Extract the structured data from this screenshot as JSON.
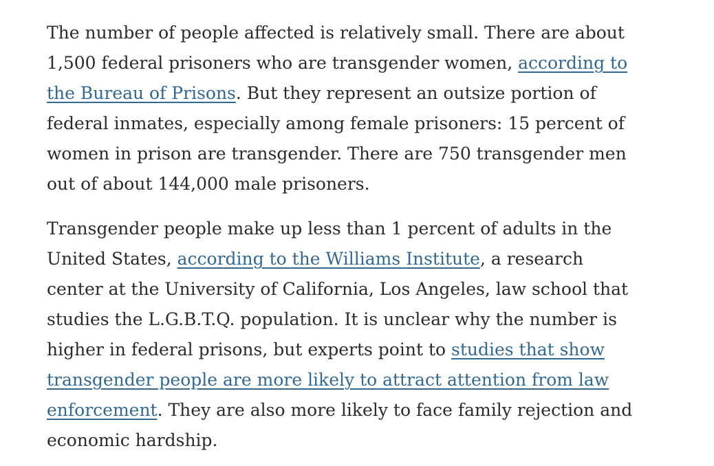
{
  "article": {
    "paragraph1": {
      "line1": "The number of people affected is relatively small. There are about",
      "line2_text": "1,500 federal prisoners who are transgender women, ",
      "link1_part1": "according to",
      "link1_part2": "the Bureau of Prisons",
      "line3_text": ". But they represent an outsize portion of",
      "line4": "federal inmates, especially among female prisoners: 15 percent of",
      "line5": "women in prison are transgender. There are 750 transgender men",
      "line6": "out of about 144,000 male prisoners."
    },
    "paragraph2": {
      "line1": "Transgender people make up less than 1 percent of adults in the",
      "line2_before": "United States, ",
      "link_williams": "according to the Williams Institute",
      "line2_after": ", a research",
      "line3": "center at the University of California, Los Angeles, law school that",
      "line4": "studies the L.G.B.T.Q. population. It is unclear why the number is",
      "line5_text": "higher in federal prisons, but experts point to ",
      "link_studies_part1": "studies that show",
      "link_studies_part2": "transgender people are more likely to attract attention from law",
      "link_studies_part3": "enforcement",
      "line7_after": ". They are also more likely to face family rejection and",
      "line8": "economic hardship."
    }
  },
  "colors": {
    "text": "#2b2b2b",
    "link": "#326891",
    "background": "#ffffff"
  }
}
